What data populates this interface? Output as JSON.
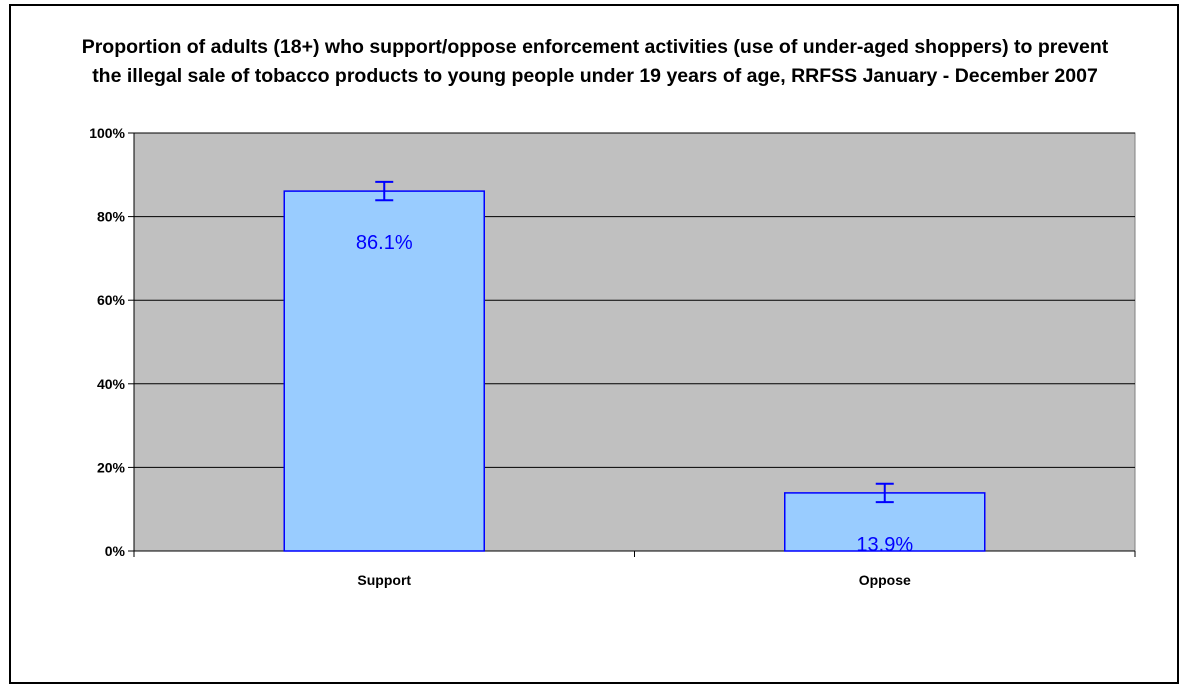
{
  "chart_data": {
    "type": "bar",
    "title": "Proportion of adults (18+) who support/oppose enforcement activities (use of under-aged shoppers) to prevent the illegal sale of tobacco products to young people under 19 years of age, RRFSS January - December 2007",
    "categories": [
      "Support",
      "Oppose"
    ],
    "values": [
      86.1,
      13.9
    ],
    "data_labels": [
      "86.1%",
      "13.9%"
    ],
    "error_bars": [
      {
        "low": 83.9,
        "high": 88.3
      },
      {
        "low": 11.7,
        "high": 16.1
      }
    ],
    "ylim": [
      0,
      100
    ],
    "yticks": [
      0,
      20,
      40,
      60,
      80,
      100
    ],
    "ytick_labels": [
      "0%",
      "20%",
      "40%",
      "60%",
      "80%",
      "100%"
    ],
    "xlabel": "",
    "ylabel": "",
    "grid": true,
    "legend": "none",
    "colors": {
      "plot_background": "#c0c0c0",
      "bar_fill": "#99ccff",
      "bar_border": "#0000ff",
      "error_bar": "#0000ff",
      "data_label": "#0000ff",
      "gridline": "#000000"
    }
  }
}
